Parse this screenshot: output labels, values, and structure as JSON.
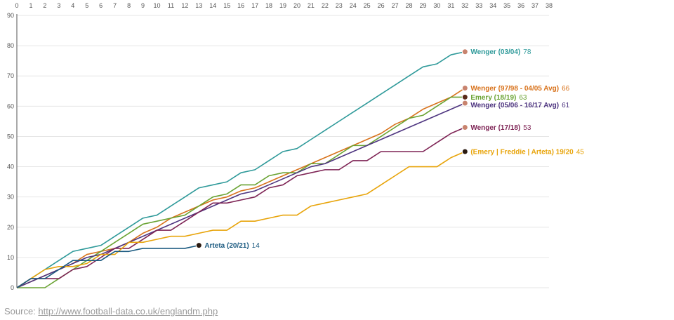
{
  "chart_data": {
    "type": "line",
    "xlim": [
      0,
      38
    ],
    "ylim": [
      0,
      90
    ],
    "x_ticks": [
      0,
      1,
      2,
      3,
      4,
      5,
      6,
      7,
      8,
      9,
      10,
      11,
      12,
      13,
      14,
      15,
      16,
      17,
      18,
      19,
      20,
      21,
      22,
      23,
      24,
      25,
      26,
      27,
      28,
      29,
      30,
      31,
      32,
      33,
      34,
      35,
      36,
      37,
      38
    ],
    "y_ticks": [
      0,
      10,
      20,
      30,
      40,
      50,
      60,
      70,
      80,
      90
    ],
    "grid": "horizontal",
    "series": [
      {
        "name": "Wenger (03/04)",
        "final_value": "78",
        "color": "#2f9a9a",
        "icon_color": "#c8836e",
        "values": [
          0,
          3,
          6,
          9,
          12,
          13,
          14,
          17,
          20,
          23,
          24,
          27,
          30,
          33,
          34,
          35,
          38,
          39,
          42,
          45,
          46,
          49,
          52,
          55,
          58,
          61,
          64,
          67,
          70,
          73,
          74,
          77,
          78
        ]
      },
      {
        "name": "Wenger (97/98 - 04/05 Avg)",
        "final_value": "66",
        "color": "#d8721b",
        "icon_color": "#c8836e",
        "values": [
          0,
          2,
          4,
          6,
          8,
          11,
          12,
          13,
          15,
          18,
          20,
          23,
          25,
          27,
          29,
          30,
          32,
          33,
          35,
          37,
          39,
          41,
          43,
          45,
          47,
          49,
          51,
          54,
          56,
          59,
          61,
          63,
          66
        ]
      },
      {
        "name": "Emery (18/19)",
        "final_value": "63",
        "color": "#6aa333",
        "icon_color": "#5a2a1a",
        "values": [
          0,
          0,
          0,
          3,
          6,
          9,
          12,
          15,
          18,
          21,
          22,
          23,
          24,
          27,
          30,
          31,
          34,
          34,
          37,
          38,
          38,
          41,
          41,
          44,
          47,
          47,
          50,
          53,
          56,
          57,
          60,
          63,
          63
        ]
      },
      {
        "name": "Wenger (05/06 - 16/17 Avg)",
        "final_value": "61",
        "color": "#4e3580",
        "icon_color": "#c8836e",
        "values": [
          0,
          2,
          4,
          6,
          8,
          10,
          11,
          13,
          15,
          17,
          19,
          21,
          23,
          25,
          27,
          29,
          31,
          32,
          34,
          36,
          38,
          40,
          41,
          43,
          45,
          47,
          49,
          51,
          53,
          55,
          57,
          59,
          61
        ]
      },
      {
        "name": "Wenger (17/18)",
        "final_value": "53",
        "color": "#7e2455",
        "icon_color": "#c8836e",
        "values": [
          0,
          3,
          3,
          3,
          6,
          7,
          10,
          13,
          13,
          16,
          19,
          19,
          22,
          25,
          28,
          28,
          29,
          30,
          33,
          34,
          37,
          38,
          39,
          39,
          42,
          42,
          45,
          45,
          45,
          45,
          48,
          51,
          53
        ]
      },
      {
        "name": "(Emery | Freddie | Arteta) 19/20",
        "final_value": "45",
        "color": "#e8a40a",
        "icon_color": "#2a1a10",
        "values": [
          0,
          3,
          6,
          7,
          7,
          8,
          11,
          11,
          15,
          15,
          16,
          17,
          17,
          18,
          19,
          19,
          22,
          22,
          23,
          24,
          24,
          27,
          28,
          29,
          30,
          31,
          34,
          37,
          40,
          40,
          40,
          43,
          45
        ]
      },
      {
        "name": "Arteta (20/21)",
        "final_value": "14",
        "color": "#1b5a80",
        "icon_color": "#2a1a10",
        "values": [
          0,
          3,
          3,
          6,
          9,
          9,
          9,
          12,
          12,
          13,
          13,
          13,
          13,
          14
        ]
      }
    ]
  },
  "source": {
    "prefix": "Source: ",
    "link_text": "http://www.football-data.co.uk/englandm.php"
  }
}
